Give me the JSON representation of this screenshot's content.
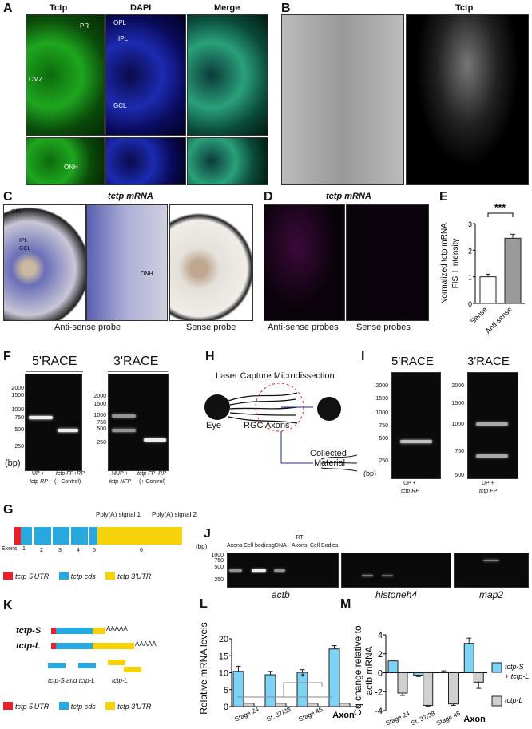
{
  "panels": {
    "A": "A",
    "B": "B",
    "C": "C",
    "D": "D",
    "E": "E",
    "F": "F",
    "G": "G",
    "H": "H",
    "I": "I",
    "J": "J",
    "K": "K",
    "L": "L",
    "M": "M"
  },
  "a": {
    "cols": [
      "Tctp",
      "DAPI",
      "Merge"
    ],
    "labels": {
      "pr": "PR",
      "cmz": "CMZ",
      "onh": "ONH",
      "opl": "OPL",
      "ipl": "IPL",
      "gcl": "GCL"
    }
  },
  "b": {
    "title": "Tctp"
  },
  "c": {
    "title": "tctp mRNA",
    "labels": {
      "opl": "OPL",
      "ipl": "IPL",
      "gcl": "GCL",
      "onh": "ONH"
    },
    "antisense": "Anti-sense probe",
    "sense": "Sense probe"
  },
  "d": {
    "title": "tctp mRNA",
    "antisense": "Anti-sense probes",
    "sense": "Sense probes"
  },
  "f": {
    "race5": "5'RACE",
    "race3": "3'RACE",
    "ladder5": [
      "2000",
      "1500",
      "1000",
      "750",
      "500",
      "250"
    ],
    "ladder3": [
      "2000",
      "1500",
      "1000",
      "750",
      "500",
      "250"
    ],
    "bp": "(bp)",
    "lanes5": [
      [
        "UP +",
        "tctp RP"
      ],
      [
        "tctp FP+RP",
        "(+ Control)"
      ]
    ],
    "lanes3": [
      [
        "NUP +",
        "tctp NFP"
      ],
      [
        "tctp FP+RP",
        "(+ Control)"
      ]
    ]
  },
  "h": {
    "title": "Laser Capture Microdissection",
    "eye": "Eye",
    "axons": "RGC Axons",
    "collected": [
      "Collected",
      "Material"
    ]
  },
  "i": {
    "race5": "5'RACE",
    "race3": "3'RACE",
    "ladder5": [
      "2000",
      "1500",
      "1000",
      "750",
      "500",
      "250"
    ],
    "ladder3": [
      "2000",
      "1500",
      "1000",
      "750",
      "500"
    ],
    "bp": "(bp)",
    "lane5": [
      "UP +",
      "tctp RP"
    ],
    "lane3": [
      "UP +",
      "tctp FP"
    ]
  },
  "g": {
    "polyA1": "Poly(A) signal 1",
    "polyA2": "Poly(A) signal 2",
    "exons_label": "Exons",
    "exons": [
      "1",
      "2",
      "3",
      "4",
      "5",
      "6"
    ],
    "legend": [
      {
        "label": "tctp 5'UTR",
        "color": "#e8202a"
      },
      {
        "label": "tctp cds",
        "color": "#29a8e0"
      },
      {
        "label": "tctp 3'UTR",
        "color": "#f5d20a"
      }
    ]
  },
  "j": {
    "bp": "(bp)",
    "ladder": [
      "1000",
      "750",
      "500",
      "250"
    ],
    "lanes": [
      "Axons",
      "Cell bodies",
      "gDNA",
      "Axons",
      "Cell Bodies"
    ],
    "rt": "-RT",
    "genes": [
      "actb",
      "histoneh4",
      "map2"
    ],
    "lanes_map2": [
      "Axons",
      "Cell bodies",
      "gDNA"
    ]
  },
  "k": {
    "s": "tctp-S",
    "l": "tctp-L",
    "polyA": "AAAAA",
    "products": [
      "tctp-S and tctp-L",
      "tctp-L"
    ],
    "legend": [
      {
        "label": "tctp 5'UTR",
        "color": "#e8202a"
      },
      {
        "label": "tctp cds",
        "color": "#29a8e0"
      },
      {
        "label": "tctp 3'UTR",
        "color": "#f5d20a"
      }
    ]
  },
  "chart_data": [
    {
      "panel": "E",
      "type": "bar",
      "title": "",
      "ylabel": "Normalized tctp mRNA FISH Intensity",
      "categories": [
        "Sense",
        "Anti-sense"
      ],
      "values": [
        1.0,
        2.45
      ],
      "errors": [
        0.1,
        0.15
      ],
      "ylim": [
        0,
        3
      ],
      "yticks": [
        "0",
        "1",
        "2",
        "3"
      ],
      "significance": "***",
      "colors": [
        "#ffffff",
        "#9a9a9a"
      ]
    },
    {
      "panel": "L",
      "type": "bar",
      "ylabel": "Relative mRNA levels",
      "categories": [
        "Stage 24",
        "St. 37/38",
        "Stage 45",
        "Axon"
      ],
      "group_label": "Eye",
      "series": [
        {
          "values": [
            10.4,
            9.4,
            10.1,
            17.0
          ],
          "errors": [
            1.5,
            1.0,
            0.8,
            1.0
          ],
          "color": "#7dd3f5"
        },
        {
          "values": [
            1,
            1,
            1,
            1
          ],
          "errors": [
            0,
            0,
            0,
            0
          ],
          "color": "#d0d0d0"
        }
      ],
      "ylim": [
        0,
        20
      ],
      "yticks": [
        "0",
        "5",
        "10",
        "15",
        "20"
      ],
      "significance": "*"
    },
    {
      "panel": "M",
      "type": "bar",
      "ylabel": [
        "Cq change relative to",
        "actb mRNA"
      ],
      "categories": [
        "Stage 24",
        "St. 37/38",
        "Stage 45",
        "Axon"
      ],
      "group_label": "Eye",
      "series": [
        {
          "name": "tctp-S + tctp-L",
          "values": [
            1.25,
            -0.25,
            0.05,
            3.1
          ],
          "errors": [
            0.1,
            0.15,
            0.15,
            0.55
          ],
          "color": "#7dd3f5"
        },
        {
          "name": "tctp-L",
          "values": [
            -2.15,
            -3.45,
            -3.3,
            -1.0
          ],
          "errors": [
            0.25,
            0.1,
            0.15,
            0.65
          ],
          "color": "#d0d0d0"
        }
      ],
      "ylim": [
        -4,
        4
      ],
      "yticks": [
        "-4",
        "-2",
        "0",
        "2",
        "4"
      ],
      "legend": "right"
    }
  ]
}
